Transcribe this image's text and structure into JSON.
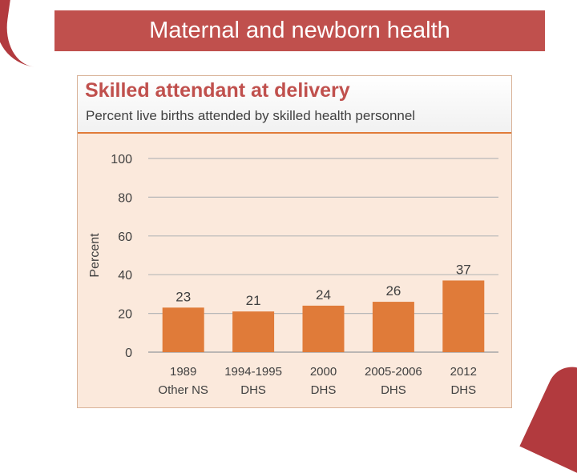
{
  "slide": {
    "title": "Maternal and newborn health"
  },
  "colors": {
    "title_bar": "#c0504d",
    "bar": "#e07b39",
    "panel_bg": "#fbe9dc"
  },
  "chart_data": {
    "type": "bar",
    "title": "Skilled attendant at delivery",
    "subtitle": "Percent live births attended by skilled health personnel",
    "ylabel": "Percent",
    "xlabel": "",
    "ylim": [
      0,
      100
    ],
    "yticks": [
      0,
      20,
      40,
      60,
      80,
      100
    ],
    "grid": true,
    "categories": [
      {
        "line1": "1989",
        "line2": "Other NS"
      },
      {
        "line1": "1994-1995",
        "line2": "DHS"
      },
      {
        "line1": "2000",
        "line2": "DHS"
      },
      {
        "line1": "2005-2006",
        "line2": "DHS"
      },
      {
        "line1": "2012",
        "line2": "DHS"
      }
    ],
    "values": [
      23,
      21,
      24,
      26,
      37
    ]
  }
}
